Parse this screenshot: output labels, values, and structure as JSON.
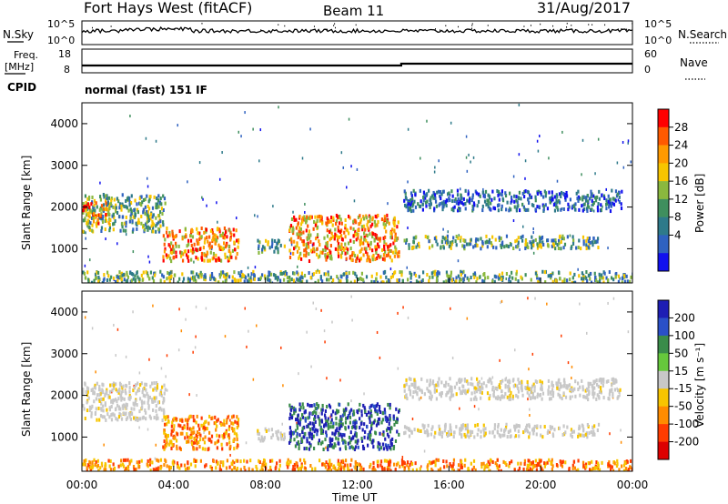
{
  "header": {
    "station": "Fort Hays West (fitACF)",
    "beam": "Beam 11",
    "date": "31/Aug/2017"
  },
  "status_panels": {
    "nsky_label": "N.Sky",
    "nsky_ticks": [
      "10^5",
      "10^0"
    ],
    "nsearch_label": "N.Search",
    "nsearch_ticks": [
      "10^5",
      "10^0"
    ],
    "freq_label": "Freq.",
    "freq_unit": "[MHz]",
    "freq_ticks": [
      "18",
      "8"
    ],
    "nave_label": "Nave",
    "nave_ticks": [
      "60",
      "0"
    ],
    "cpid_label": "CPID",
    "cpid_value": "normal (fast) 151 IF"
  },
  "chart_data": [
    {
      "type": "heatmap",
      "panel": "power",
      "ylabel": "Slant Range [km]",
      "yticks": [
        "4000",
        "3000",
        "2000",
        "1000"
      ],
      "ylim": [
        180,
        4500
      ],
      "xticks": [
        "00:00",
        "04:00",
        "08:00",
        "12:00",
        "16:00",
        "20:00",
        "00:00"
      ],
      "xlim": [
        0,
        24
      ],
      "colorbar": {
        "label": "Power [dB]",
        "ticks": [
          "28",
          "24",
          "20",
          "16",
          "12",
          "8",
          "4"
        ],
        "colors": [
          "#ff0000",
          "#ff5a00",
          "#ff9a00",
          "#f7c500",
          "#8ab83e",
          "#3f8f5e",
          "#2e7a8a",
          "#2f62c0",
          "#1111ee"
        ]
      },
      "regions": [
        {
          "t0": 0.0,
          "t1": 3.6,
          "r0": 1400,
          "r1": 2300,
          "level": "mid"
        },
        {
          "t0": 0.0,
          "t1": 1.2,
          "r0": 1600,
          "r1": 2100,
          "level": "high"
        },
        {
          "t0": 3.5,
          "t1": 6.8,
          "r0": 700,
          "r1": 1500,
          "level": "high"
        },
        {
          "t0": 7.6,
          "t1": 8.8,
          "r0": 900,
          "r1": 1200,
          "level": "mid"
        },
        {
          "t0": 9.0,
          "t1": 13.8,
          "r0": 700,
          "r1": 1800,
          "level": "high"
        },
        {
          "t0": 14.0,
          "t1": 22.5,
          "r0": 1000,
          "r1": 1300,
          "level": "mid"
        },
        {
          "t0": 14.0,
          "t1": 23.5,
          "r0": 1900,
          "r1": 2400,
          "level": "low"
        },
        {
          "t0": 0.0,
          "t1": 24.0,
          "r0": 180,
          "r1": 450,
          "level": "mid"
        }
      ]
    },
    {
      "type": "heatmap",
      "panel": "velocity",
      "ylabel": "Slant Range [km]",
      "yticks": [
        "4000",
        "3000",
        "2000",
        "1000"
      ],
      "ylim": [
        180,
        4500
      ],
      "xticks": [
        "00:00",
        "04:00",
        "08:00",
        "12:00",
        "16:00",
        "20:00",
        "00:00"
      ],
      "xlabel": "Time UT",
      "xlim": [
        0,
        24
      ],
      "colorbar": {
        "label": "Velocity [m s⁻¹]",
        "ticks": [
          "200",
          "100",
          "50",
          "15",
          "-15",
          "-50",
          "-100",
          "-200"
        ],
        "colors": [
          "#1e1eb4",
          "#2a50c8",
          "#3a8c4a",
          "#66c83c",
          "#c8c8c8",
          "#f7c500",
          "#ff8c00",
          "#ff3c00",
          "#dd0000"
        ]
      },
      "regions": [
        {
          "t0": 0.0,
          "t1": 3.6,
          "r0": 1400,
          "r1": 2300,
          "level": "ground"
        },
        {
          "t0": 3.5,
          "t1": 6.8,
          "r0": 700,
          "r1": 1500,
          "level": "neg"
        },
        {
          "t0": 7.6,
          "t1": 8.8,
          "r0": 900,
          "r1": 1200,
          "level": "ground"
        },
        {
          "t0": 9.0,
          "t1": 13.8,
          "r0": 700,
          "r1": 1800,
          "level": "pos"
        },
        {
          "t0": 14.0,
          "t1": 22.5,
          "r0": 1000,
          "r1": 1300,
          "level": "ground"
        },
        {
          "t0": 14.0,
          "t1": 23.5,
          "r0": 1900,
          "r1": 2400,
          "level": "ground"
        },
        {
          "t0": 0.0,
          "t1": 24.0,
          "r0": 180,
          "r1": 450,
          "level": "neg"
        }
      ]
    }
  ]
}
